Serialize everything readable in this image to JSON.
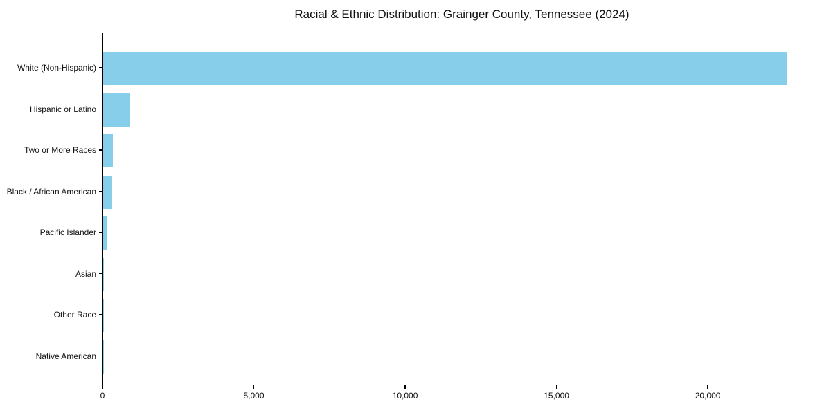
{
  "title": "Racial & Ethnic Distribution: Grainger County, Tennessee (2024)",
  "colors": {
    "bar": "#87CEEB",
    "axis": "#000000",
    "background": "#FFFFFF",
    "text": "#111111"
  },
  "chart_data": {
    "type": "bar",
    "orientation": "horizontal",
    "title": "Racial & Ethnic Distribution: Grainger County, Tennessee (2024)",
    "categories": [
      "White (Non-Hispanic)",
      "Hispanic or Latino",
      "Two or More Races",
      "Black / African American",
      "Pacific Islander",
      "Asian",
      "Other Race",
      "Native American"
    ],
    "values": [
      22600,
      900,
      310,
      300,
      120,
      30,
      20,
      15
    ],
    "xlabel": "",
    "ylabel": "",
    "xlim": [
      0,
      23750
    ],
    "xticks": [
      0,
      5000,
      10000,
      15000,
      20000
    ],
    "xtick_labels": [
      "0",
      "5,000",
      "10,000",
      "15,000",
      "20,000"
    ],
    "grid": false,
    "legend": null,
    "bar_color": "#87CEEB",
    "sort": "descending"
  }
}
